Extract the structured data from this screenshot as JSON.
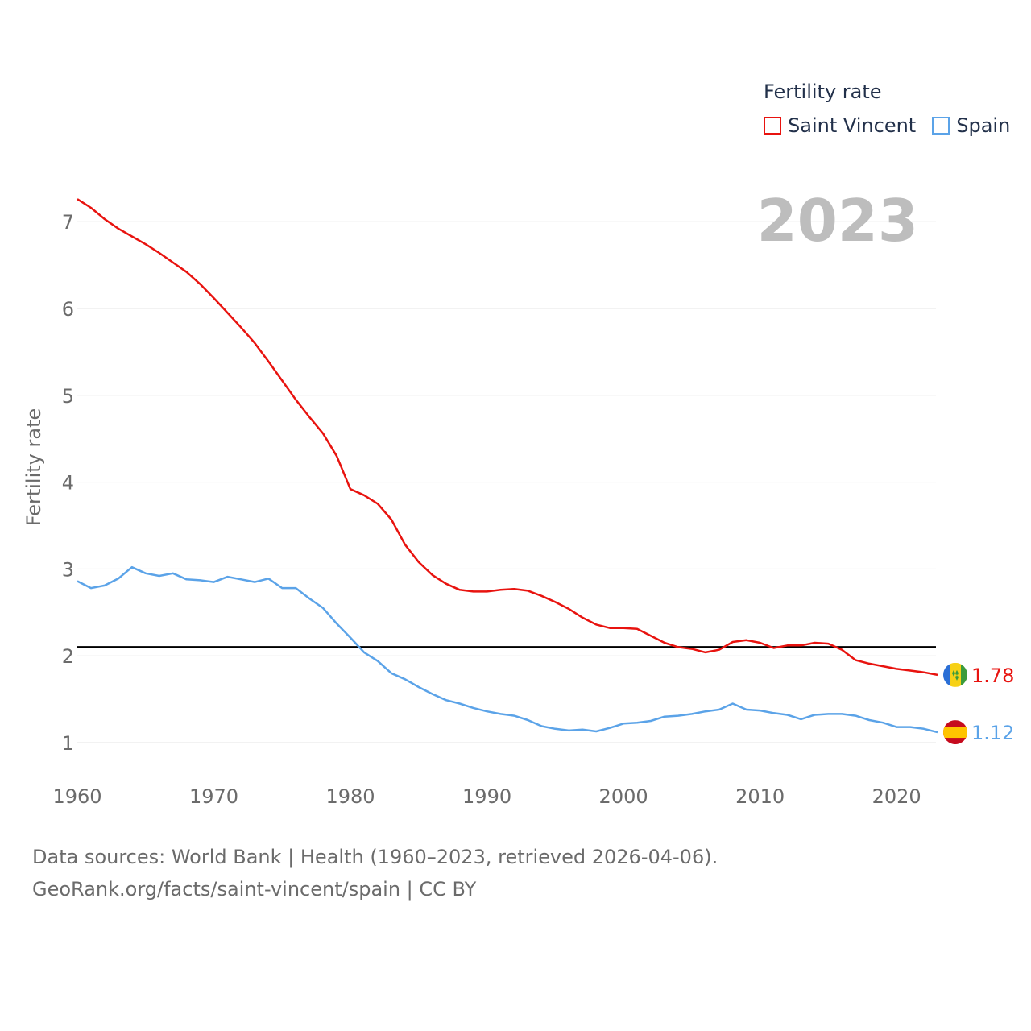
{
  "legend": {
    "title": "Fertility rate",
    "items": [
      {
        "label": "Saint Vincent",
        "color": "#e8130f"
      },
      {
        "label": "Spain",
        "color": "#5ba3e8"
      }
    ]
  },
  "year_label": "2023",
  "footer": {
    "line1": "Data sources: World Bank | Health (1960–2023, retrieved 2026-04-06).",
    "line2": "GeoRank.org/facts/saint-vincent/spain | CC BY"
  },
  "flags": {
    "saint_vincent": "saint-vincent-flag-icon",
    "spain": "spain-flag-icon"
  },
  "chart_data": {
    "type": "line",
    "title": "Fertility rate",
    "xlabel": "",
    "ylabel": "Fertility rate",
    "xlim": [
      1960,
      2023
    ],
    "ylim": [
      0.5,
      7.5
    ],
    "xticks": [
      1960,
      1970,
      1980,
      1990,
      2000,
      2010,
      2020
    ],
    "yticks": [
      1,
      2,
      3,
      4,
      5,
      6,
      7
    ],
    "grid": true,
    "reference_line": 2.1,
    "x": [
      1960,
      1961,
      1962,
      1963,
      1964,
      1965,
      1966,
      1967,
      1968,
      1969,
      1970,
      1971,
      1972,
      1973,
      1974,
      1975,
      1976,
      1977,
      1978,
      1979,
      1980,
      1981,
      1982,
      1983,
      1984,
      1985,
      1986,
      1987,
      1988,
      1989,
      1990,
      1991,
      1992,
      1993,
      1994,
      1995,
      1996,
      1997,
      1998,
      1999,
      2000,
      2001,
      2002,
      2003,
      2004,
      2005,
      2006,
      2007,
      2008,
      2009,
      2010,
      2011,
      2012,
      2013,
      2014,
      2015,
      2016,
      2017,
      2018,
      2019,
      2020,
      2021,
      2022,
      2023
    ],
    "series": [
      {
        "name": "Saint Vincent",
        "color": "#e8130f",
        "end_label": "1.78",
        "values": [
          7.26,
          7.16,
          7.03,
          6.92,
          6.83,
          6.74,
          6.64,
          6.53,
          6.42,
          6.28,
          6.12,
          5.95,
          5.78,
          5.6,
          5.39,
          5.17,
          4.95,
          4.75,
          4.56,
          4.3,
          3.92,
          3.85,
          3.75,
          3.57,
          3.28,
          3.08,
          2.93,
          2.83,
          2.76,
          2.74,
          2.74,
          2.76,
          2.77,
          2.75,
          2.69,
          2.62,
          2.54,
          2.44,
          2.36,
          2.32,
          2.32,
          2.31,
          2.23,
          2.15,
          2.1,
          2.08,
          2.04,
          2.07,
          2.16,
          2.18,
          2.15,
          2.09,
          2.12,
          2.12,
          2.15,
          2.14,
          2.07,
          1.95,
          1.91,
          1.88,
          1.85,
          1.83,
          1.81,
          1.78
        ]
      },
      {
        "name": "Spain",
        "color": "#5ba3e8",
        "end_label": "1.12",
        "values": [
          2.86,
          2.78,
          2.81,
          2.89,
          3.02,
          2.95,
          2.92,
          2.95,
          2.88,
          2.87,
          2.85,
          2.91,
          2.88,
          2.85,
          2.89,
          2.78,
          2.78,
          2.66,
          2.55,
          2.37,
          2.21,
          2.04,
          1.94,
          1.8,
          1.73,
          1.64,
          1.56,
          1.49,
          1.45,
          1.4,
          1.36,
          1.33,
          1.31,
          1.26,
          1.19,
          1.16,
          1.14,
          1.15,
          1.13,
          1.17,
          1.22,
          1.23,
          1.25,
          1.3,
          1.31,
          1.33,
          1.36,
          1.38,
          1.45,
          1.38,
          1.37,
          1.34,
          1.32,
          1.27,
          1.32,
          1.33,
          1.33,
          1.31,
          1.26,
          1.23,
          1.18,
          1.18,
          1.16,
          1.12
        ]
      }
    ]
  }
}
